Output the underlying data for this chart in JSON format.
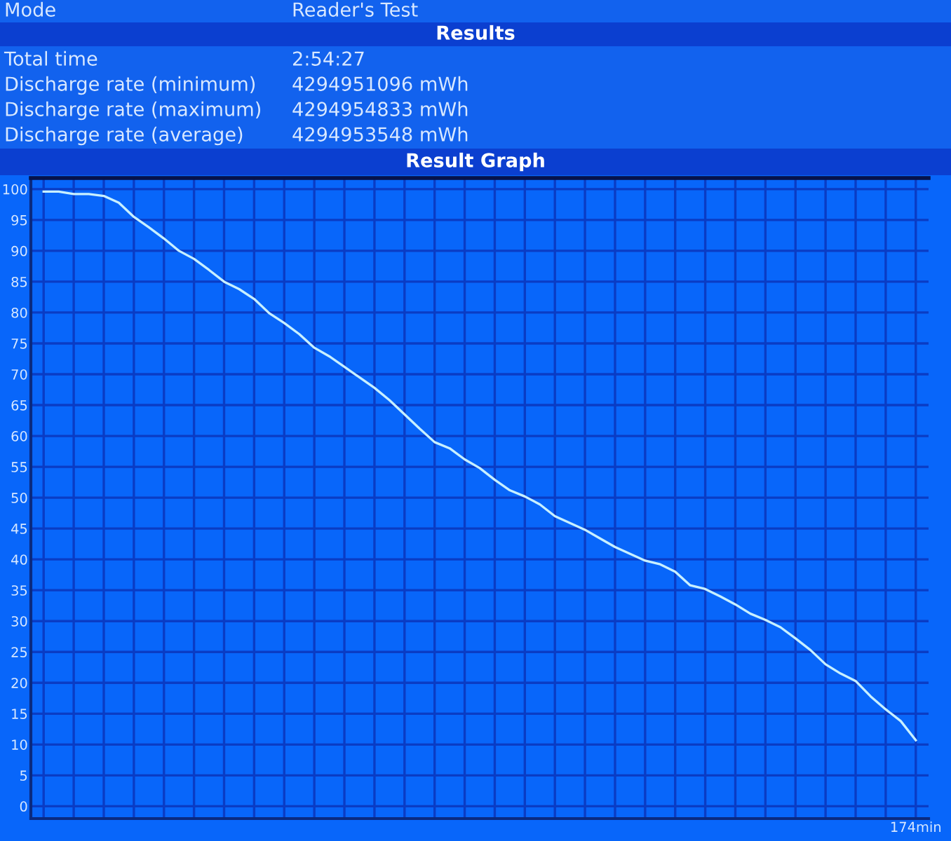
{
  "chart_data": {
    "type": "line",
    "title": "Result Graph",
    "subtitle": "Results",
    "annotations": [
      "Mode",
      "Reader's Test",
      "Total time",
      "2:54:27",
      "Discharge rate (minimum)",
      "4294951096 mWh",
      "Discharge rate (maximum)",
      "4294954833 mWh",
      "Discharge rate (average)",
      "4294953548 mWh"
    ],
    "categories": [
      null,
      null,
      null,
      null,
      null,
      null,
      null,
      null,
      null,
      null,
      null,
      null,
      null,
      null,
      null,
      null,
      null,
      null,
      null,
      null,
      null,
      null,
      null,
      null,
      null,
      null,
      null,
      null,
      null,
      null,
      null,
      null,
      null,
      null,
      null,
      null,
      null,
      null,
      null,
      null,
      null,
      null,
      null,
      null,
      null,
      null,
      null,
      null,
      null,
      null,
      null,
      null,
      null,
      null,
      null,
      null,
      null,
      null,
      "174min"
    ],
    "series": [
      {
        "color": "#c8f0ff",
        "values": [
          99.6,
          99.6,
          99.2,
          99.2,
          98.9,
          97.8,
          95.5,
          93.8,
          92.0,
          90.0,
          88.7,
          86.9,
          85.0,
          83.8,
          82.2,
          79.9,
          78.3,
          76.5,
          74.3,
          72.9,
          71.2,
          69.5,
          67.8,
          65.8,
          63.5,
          61.2,
          59.0,
          58.0,
          56.2,
          54.8,
          52.9,
          51.2,
          50.2,
          48.9,
          47.0,
          45.9,
          44.8,
          43.4,
          42.0,
          40.9,
          39.8,
          39.2,
          38.0,
          35.8,
          35.2,
          34.0,
          32.7,
          31.2,
          30.2,
          29.0,
          27.2,
          25.3,
          23.0,
          21.5,
          20.3,
          17.8,
          15.7,
          13.8,
          10.7
        ]
      }
    ],
    "ylim": [
      -2,
      101.8
    ],
    "yticks": [
      0,
      5,
      10,
      15,
      20,
      25,
      30,
      35,
      40,
      45,
      50,
      55,
      60,
      65,
      70,
      75,
      80,
      85,
      90,
      95,
      100
    ],
    "grid": true
  }
}
